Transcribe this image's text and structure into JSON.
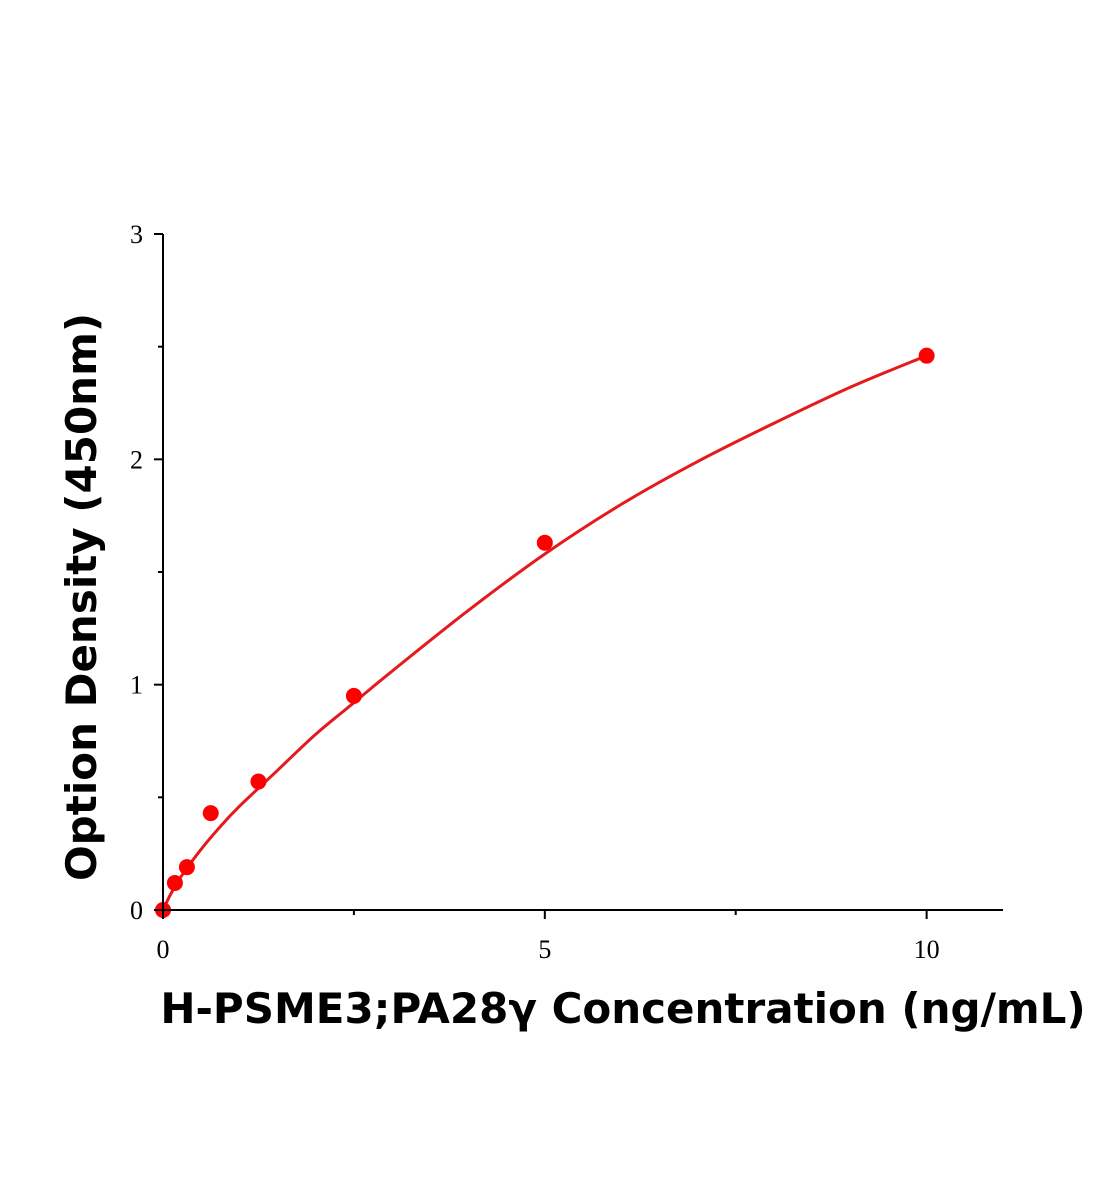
{
  "chart_data": {
    "type": "scatter",
    "title": "",
    "xlabel": "H-PSME3;PA28γ Concentration (ng/mL)",
    "ylabel": "Option Density (450nm)",
    "xlim": [
      0,
      11
    ],
    "ylim": [
      0,
      3
    ],
    "x_ticks": [
      0,
      5,
      10
    ],
    "x_tick_labels": [
      "0",
      "5",
      "10"
    ],
    "x_minor_ticks": [
      2.5,
      7.5
    ],
    "y_ticks": [
      0,
      1,
      2,
      3
    ],
    "y_tick_labels": [
      "0",
      "1",
      "2",
      "3"
    ],
    "y_minor_ticks": [
      0.5,
      1.5,
      2.5
    ],
    "grid": false,
    "legend": "none",
    "colors": {
      "points": "#ff0000",
      "fit_line": "#e41a1c",
      "axis": "#000000"
    },
    "series": [
      {
        "kind": "points",
        "x": [
          0,
          0.156,
          0.313,
          0.625,
          1.25,
          2.5,
          5,
          10
        ],
        "y": [
          0.0,
          0.12,
          0.19,
          0.43,
          0.57,
          0.95,
          1.63,
          2.46
        ]
      },
      {
        "kind": "fit-curve",
        "x": [
          0,
          0.1,
          0.25,
          0.5,
          0.75,
          1,
          1.5,
          2,
          2.5,
          3,
          4,
          5,
          6,
          7,
          8,
          9,
          10
        ],
        "y": [
          0.0,
          0.07,
          0.155,
          0.27,
          0.37,
          0.46,
          0.62,
          0.78,
          0.92,
          1.06,
          1.33,
          1.58,
          1.8,
          1.99,
          2.16,
          2.32,
          2.46
        ]
      }
    ]
  }
}
